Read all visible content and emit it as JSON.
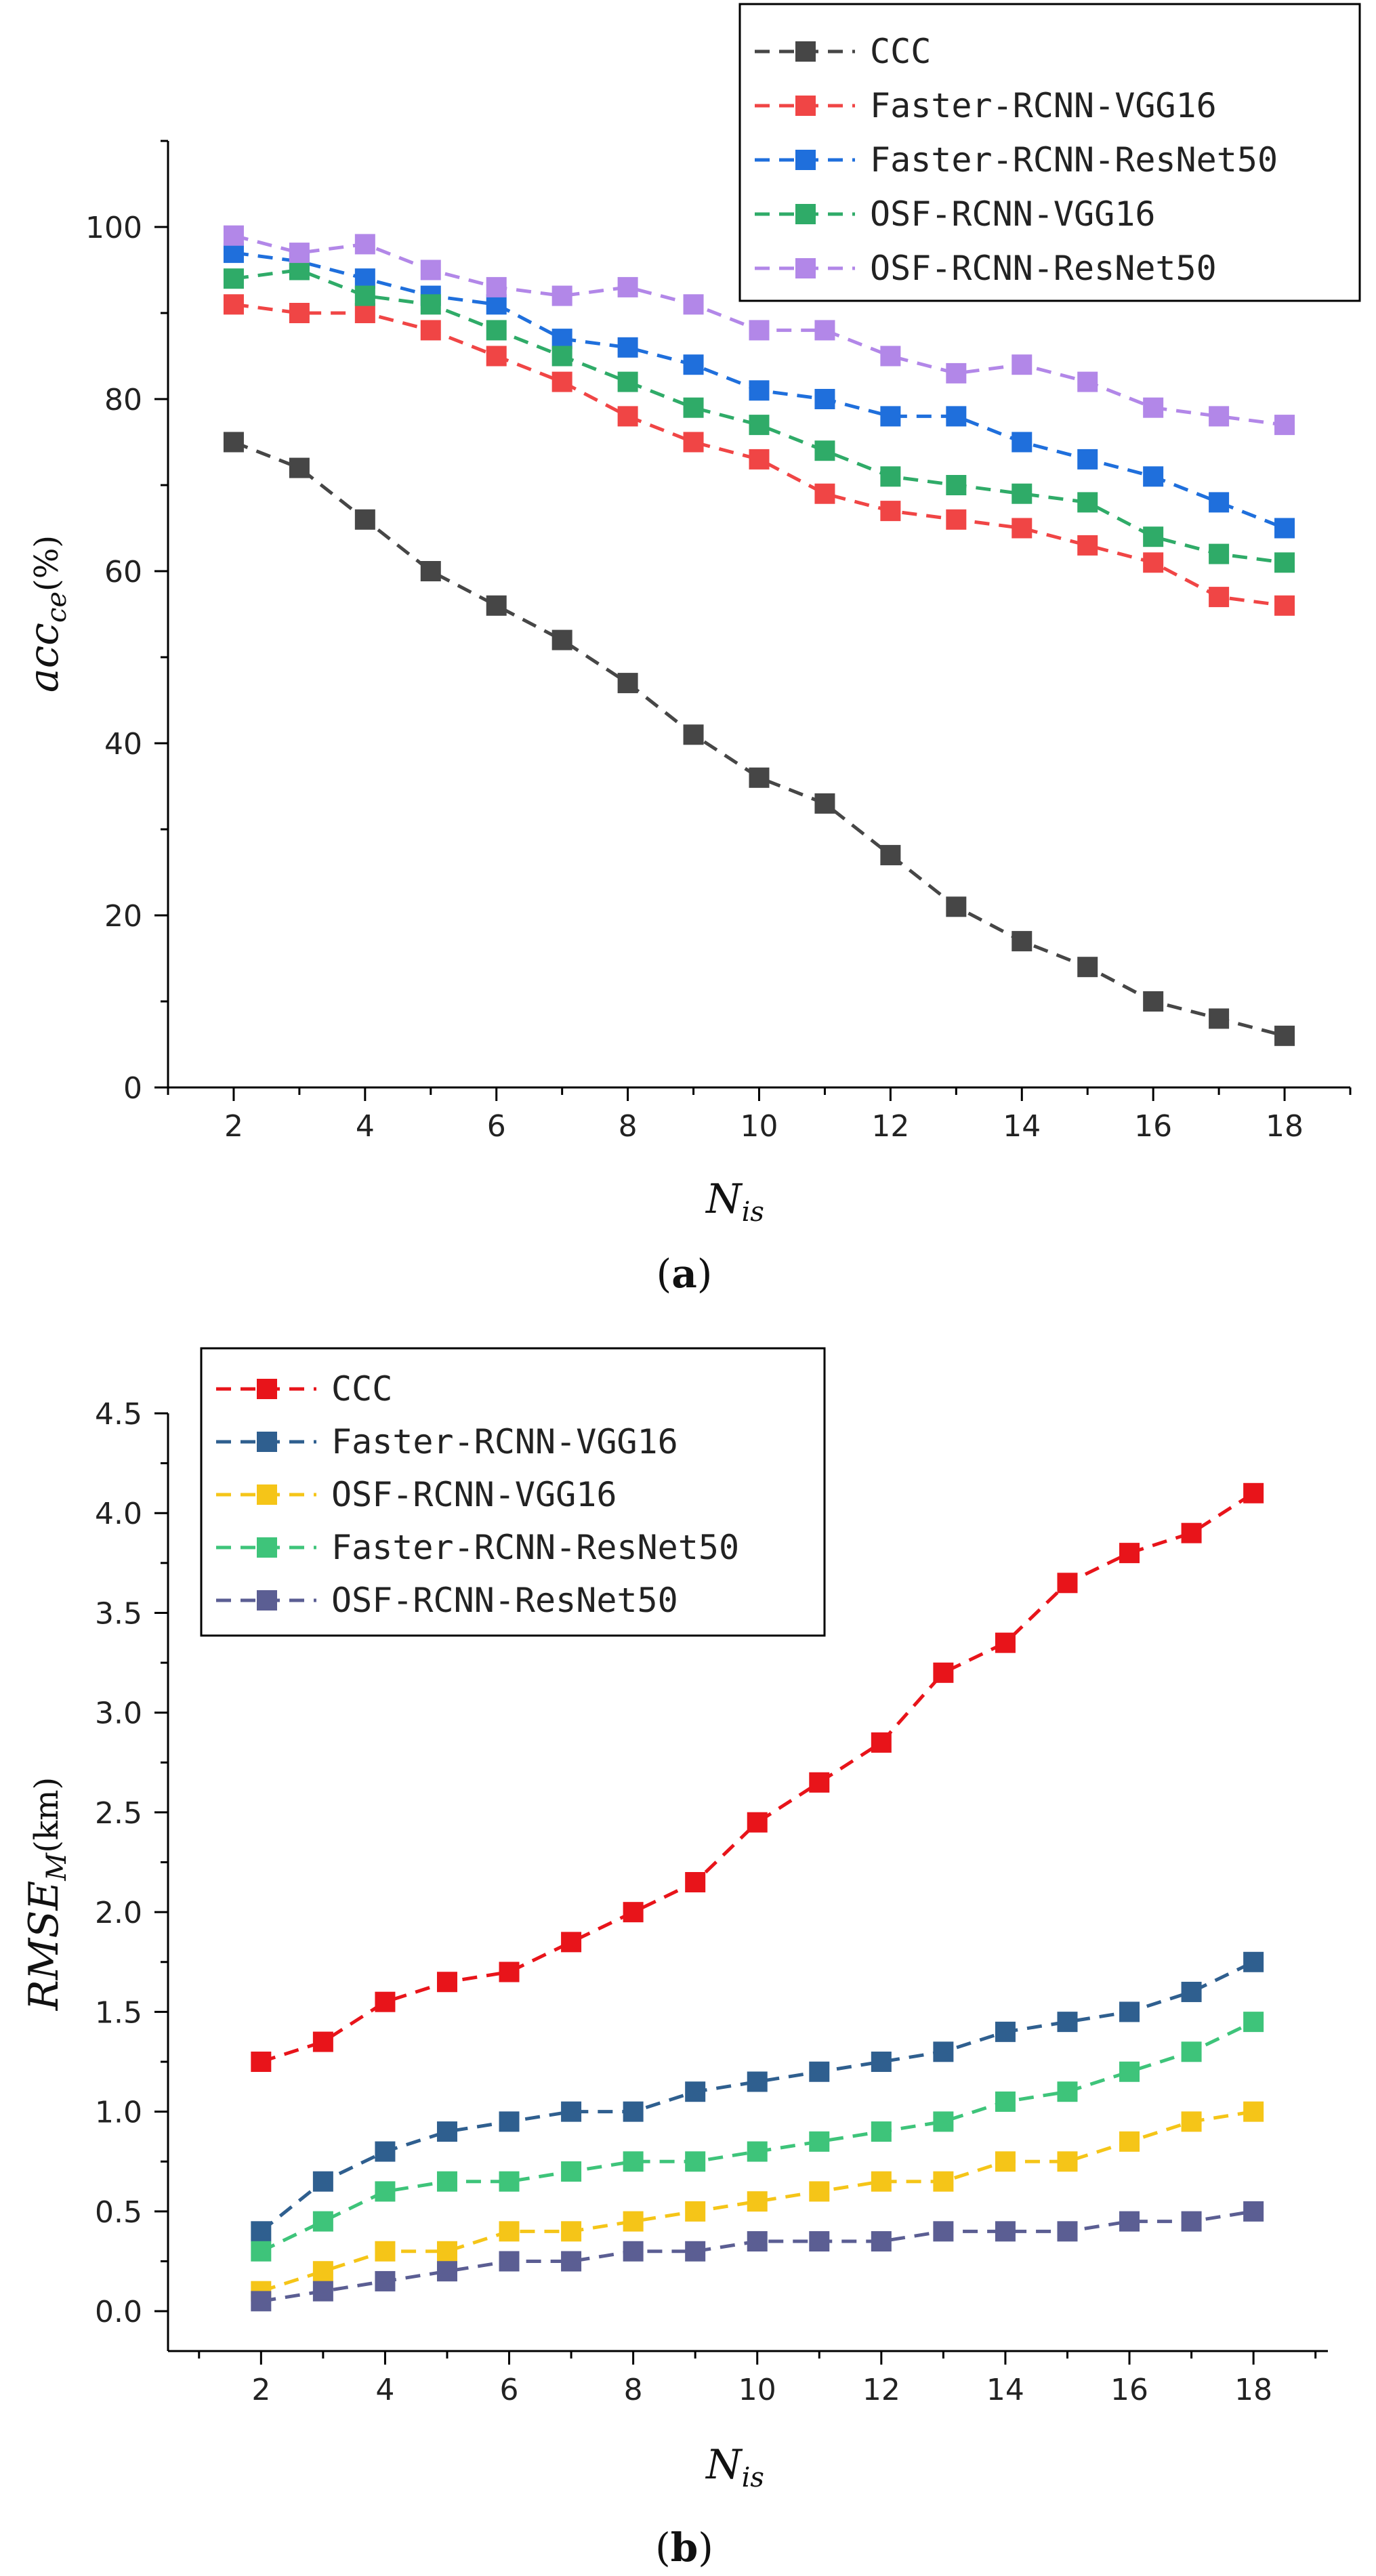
{
  "chart_data": [
    {
      "type": "line",
      "panel_label": "a",
      "x": [
        2,
        3,
        4,
        5,
        6,
        7,
        8,
        9,
        10,
        11,
        12,
        13,
        14,
        15,
        16,
        17,
        18
      ],
      "xlim": [
        1,
        19
      ],
      "ylim": [
        0,
        110
      ],
      "xticks": [
        2,
        4,
        6,
        8,
        10,
        12,
        14,
        16,
        18
      ],
      "yticks": [
        0,
        20,
        40,
        60,
        80,
        100
      ],
      "xlabel": {
        "main": "N",
        "sub": "is"
      },
      "ylabel": {
        "main": "acc",
        "sub": "ce",
        "unit": "(%)"
      },
      "legend_position": "top-right",
      "series": [
        {
          "name": "CCC",
          "color": "#464646",
          "values": [
            75,
            72,
            66,
            60,
            56,
            52,
            47,
            41,
            36,
            33,
            27,
            21,
            17,
            14,
            10,
            8,
            6
          ]
        },
        {
          "name": "Faster-RCNN-VGG16",
          "color": "#f04545",
          "values": [
            91,
            90,
            90,
            88,
            85,
            82,
            78,
            75,
            73,
            69,
            67,
            66,
            65,
            63,
            61,
            57,
            56
          ]
        },
        {
          "name": "Faster-RCNN-ResNet50",
          "color": "#1f6fdc",
          "values": [
            97,
            96,
            94,
            92,
            91,
            87,
            86,
            84,
            81,
            80,
            78,
            78,
            75,
            73,
            71,
            68,
            65
          ]
        },
        {
          "name": "OSF-RCNN-VGG16",
          "color": "#2fab68",
          "values": [
            94,
            95,
            92,
            91,
            88,
            85,
            82,
            79,
            77,
            74,
            71,
            70,
            69,
            68,
            64,
            62,
            61
          ]
        },
        {
          "name": "OSF-RCNN-ResNet50",
          "color": "#b287e8",
          "values": [
            99,
            97,
            98,
            95,
            93,
            92,
            93,
            91,
            88,
            88,
            85,
            83,
            84,
            82,
            79,
            78,
            77
          ]
        }
      ]
    },
    {
      "type": "line",
      "panel_label": "b",
      "x": [
        2,
        3,
        4,
        5,
        6,
        7,
        8,
        9,
        10,
        11,
        12,
        13,
        14,
        15,
        16,
        17,
        18
      ],
      "xlim": [
        0.5,
        19.2
      ],
      "ylim": [
        -0.2,
        4.5
      ],
      "xticks": [
        2,
        4,
        6,
        8,
        10,
        12,
        14,
        16,
        18
      ],
      "yticks": [
        0.0,
        0.5,
        1.0,
        1.5,
        2.0,
        2.5,
        3.0,
        3.5,
        4.0,
        4.5
      ],
      "ytick_labels": [
        "0.0",
        "0.5",
        "1.0",
        "1.5",
        "2.0",
        "2.5",
        "3.0",
        "3.5",
        "4.0",
        "4.5"
      ],
      "xlabel": {
        "main": "N",
        "sub": "is"
      },
      "ylabel": {
        "main": "RMSE",
        "sub": "M",
        "unit": "(km)"
      },
      "legend_position": "top-left",
      "series": [
        {
          "name": "CCC",
          "color": "#e8141a",
          "values": [
            1.25,
            1.35,
            1.55,
            1.65,
            1.7,
            1.85,
            2.0,
            2.15,
            2.45,
            2.65,
            2.85,
            3.2,
            3.35,
            3.65,
            3.8,
            3.9,
            4.1
          ]
        },
        {
          "name": "Faster-RCNN-VGG16",
          "color": "#2f5f8f",
          "values": [
            0.4,
            0.65,
            0.8,
            0.9,
            0.95,
            1.0,
            1.0,
            1.1,
            1.15,
            1.2,
            1.25,
            1.3,
            1.4,
            1.45,
            1.5,
            1.6,
            1.75
          ]
        },
        {
          "name": "OSF-RCNN-VGG16",
          "color": "#f5c518",
          "values": [
            0.1,
            0.2,
            0.3,
            0.3,
            0.4,
            0.4,
            0.45,
            0.5,
            0.55,
            0.6,
            0.65,
            0.65,
            0.75,
            0.75,
            0.85,
            0.95,
            1.0
          ]
        },
        {
          "name": "Faster-RCNN-ResNet50",
          "color": "#3ec47a",
          "values": [
            0.3,
            0.45,
            0.6,
            0.65,
            0.65,
            0.7,
            0.75,
            0.75,
            0.8,
            0.85,
            0.9,
            0.95,
            1.05,
            1.1,
            1.2,
            1.3,
            1.45
          ]
        },
        {
          "name": "OSF-RCNN-ResNet50",
          "color": "#5b5e93",
          "values": [
            0.05,
            0.1,
            0.15,
            0.2,
            0.25,
            0.25,
            0.3,
            0.3,
            0.35,
            0.35,
            0.35,
            0.4,
            0.4,
            0.4,
            0.45,
            0.45,
            0.5
          ]
        }
      ]
    }
  ]
}
